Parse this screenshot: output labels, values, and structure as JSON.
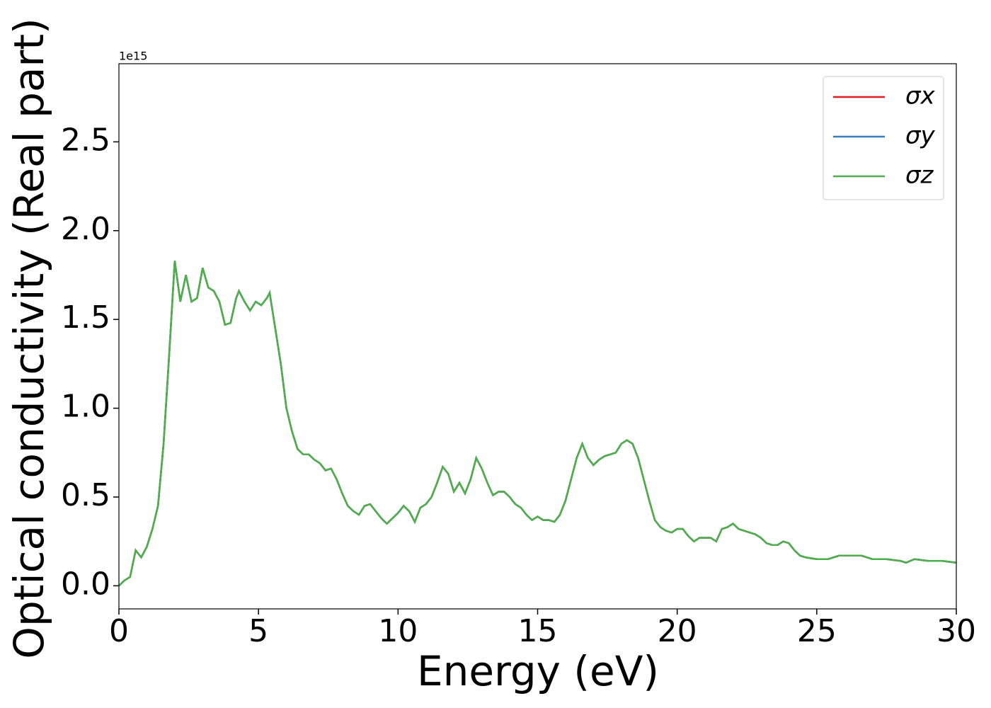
{
  "chart_data": {
    "type": "line",
    "xlabel": "Energy (eV)",
    "ylabel": "Optical conductivity (Real part)",
    "y_offset_label": "1e15",
    "xlim": [
      0,
      30
    ],
    "xticks": [
      0,
      5,
      10,
      15,
      20,
      25,
      30
    ],
    "ylim": [
      -0.13,
      2.94
    ],
    "yticks": [
      {
        "value": 0,
        "label": "0.0"
      },
      {
        "value": 0.5,
        "label": "0.5"
      },
      {
        "value": 1,
        "label": "1.0"
      },
      {
        "value": 1.5,
        "label": "1.5"
      },
      {
        "value": 2,
        "label": "2.0"
      },
      {
        "value": 2.5,
        "label": "2.5"
      }
    ],
    "legend": "upper right",
    "x": [
      0,
      0.2,
      0.4,
      0.6,
      0.8,
      1.0,
      1.2,
      1.4,
      1.6,
      1.8,
      2.0,
      2.2,
      2.4,
      2.6,
      2.8,
      3.0,
      3.2,
      3.4,
      3.6,
      3.8,
      4.0,
      4.2,
      4.3,
      4.5,
      4.7,
      4.9,
      5.1,
      5.3,
      5.4,
      5.6,
      5.8,
      6.0,
      6.2,
      6.4,
      6.6,
      6.8,
      7.0,
      7.2,
      7.4,
      7.6,
      7.8,
      8.0,
      8.2,
      8.4,
      8.6,
      8.8,
      9.0,
      9.2,
      9.4,
      9.6,
      9.8,
      10.0,
      10.2,
      10.4,
      10.6,
      10.8,
      11.0,
      11.2,
      11.4,
      11.6,
      11.8,
      12.0,
      12.2,
      12.4,
      12.6,
      12.8,
      13.0,
      13.2,
      13.4,
      13.6,
      13.8,
      14.0,
      14.2,
      14.4,
      14.6,
      14.8,
      15.0,
      15.2,
      15.4,
      15.6,
      15.8,
      16.0,
      16.2,
      16.4,
      16.6,
      16.8,
      17.0,
      17.2,
      17.4,
      17.6,
      17.8,
      18.0,
      18.2,
      18.4,
      18.6,
      18.8,
      19.0,
      19.2,
      19.4,
      19.6,
      19.8,
      20.0,
      20.2,
      20.4,
      20.6,
      20.8,
      21.0,
      21.2,
      21.4,
      21.6,
      21.8,
      22.0,
      22.2,
      22.4,
      22.6,
      22.8,
      23.0,
      23.2,
      23.4,
      23.6,
      23.8,
      24.0,
      24.2,
      24.4,
      24.6,
      25.0,
      25.4,
      25.8,
      26.2,
      26.6,
      27.0,
      27.5,
      28.0,
      28.2,
      28.5,
      29.0,
      29.5,
      30.0
    ],
    "series": [
      {
        "name": "σx",
        "color": "#e41a1c",
        "values": [
          0,
          0.03,
          0.05,
          0.2,
          0.16,
          0.22,
          0.32,
          0.45,
          0.8,
          1.3,
          1.83,
          1.6,
          1.75,
          1.6,
          1.62,
          1.79,
          1.68,
          1.66,
          1.6,
          1.47,
          1.48,
          1.62,
          1.66,
          1.6,
          1.55,
          1.6,
          1.58,
          1.62,
          1.65,
          1.45,
          1.25,
          1.0,
          0.87,
          0.77,
          0.74,
          0.74,
          0.71,
          0.69,
          0.65,
          0.66,
          0.6,
          0.52,
          0.45,
          0.42,
          0.4,
          0.45,
          0.46,
          0.42,
          0.38,
          0.35,
          0.38,
          0.41,
          0.45,
          0.42,
          0.36,
          0.44,
          0.46,
          0.5,
          0.58,
          0.67,
          0.63,
          0.53,
          0.58,
          0.52,
          0.6,
          0.72,
          0.66,
          0.58,
          0.51,
          0.53,
          0.53,
          0.5,
          0.46,
          0.44,
          0.4,
          0.37,
          0.39,
          0.37,
          0.37,
          0.36,
          0.4,
          0.48,
          0.6,
          0.72,
          0.8,
          0.72,
          0.68,
          0.71,
          0.73,
          0.74,
          0.75,
          0.8,
          0.82,
          0.8,
          0.72,
          0.6,
          0.48,
          0.37,
          0.33,
          0.31,
          0.3,
          0.32,
          0.32,
          0.28,
          0.25,
          0.27,
          0.27,
          0.27,
          0.25,
          0.32,
          0.33,
          0.35,
          0.32,
          0.31,
          0.3,
          0.29,
          0.27,
          0.24,
          0.23,
          0.23,
          0.25,
          0.24,
          0.2,
          0.17,
          0.16,
          0.15,
          0.15,
          0.17,
          0.17,
          0.17,
          0.15,
          0.15,
          0.14,
          0.13,
          0.15,
          0.14,
          0.14,
          0.13
        ]
      },
      {
        "name": "σy",
        "color": "#377eb8",
        "values": [
          0,
          0.03,
          0.05,
          0.2,
          0.16,
          0.22,
          0.32,
          0.45,
          0.8,
          1.3,
          1.83,
          1.6,
          1.75,
          1.6,
          1.62,
          1.79,
          1.68,
          1.66,
          1.6,
          1.47,
          1.48,
          1.62,
          1.66,
          1.6,
          1.55,
          1.6,
          1.58,
          1.62,
          1.65,
          1.45,
          1.25,
          1.0,
          0.87,
          0.77,
          0.74,
          0.74,
          0.71,
          0.69,
          0.65,
          0.66,
          0.6,
          0.52,
          0.45,
          0.42,
          0.4,
          0.45,
          0.46,
          0.42,
          0.38,
          0.35,
          0.38,
          0.41,
          0.45,
          0.42,
          0.36,
          0.44,
          0.46,
          0.5,
          0.58,
          0.67,
          0.63,
          0.53,
          0.58,
          0.52,
          0.6,
          0.72,
          0.66,
          0.58,
          0.51,
          0.53,
          0.53,
          0.5,
          0.46,
          0.44,
          0.4,
          0.37,
          0.39,
          0.37,
          0.37,
          0.36,
          0.4,
          0.48,
          0.6,
          0.72,
          0.8,
          0.72,
          0.68,
          0.71,
          0.73,
          0.74,
          0.75,
          0.8,
          0.82,
          0.8,
          0.72,
          0.6,
          0.48,
          0.37,
          0.33,
          0.31,
          0.3,
          0.32,
          0.32,
          0.28,
          0.25,
          0.27,
          0.27,
          0.27,
          0.25,
          0.32,
          0.33,
          0.35,
          0.32,
          0.31,
          0.3,
          0.29,
          0.27,
          0.24,
          0.23,
          0.23,
          0.25,
          0.24,
          0.2,
          0.17,
          0.16,
          0.15,
          0.15,
          0.17,
          0.17,
          0.17,
          0.15,
          0.15,
          0.14,
          0.13,
          0.15,
          0.14,
          0.14,
          0.13
        ]
      },
      {
        "name": "σz",
        "color": "#4daf4a",
        "values": [
          0,
          0.03,
          0.05,
          0.2,
          0.16,
          0.22,
          0.32,
          0.45,
          0.8,
          1.3,
          1.83,
          1.6,
          1.75,
          1.6,
          1.62,
          1.79,
          1.68,
          1.66,
          1.6,
          1.47,
          1.48,
          1.62,
          1.66,
          1.6,
          1.55,
          1.6,
          1.58,
          1.62,
          1.65,
          1.45,
          1.25,
          1.0,
          0.87,
          0.77,
          0.74,
          0.74,
          0.71,
          0.69,
          0.65,
          0.66,
          0.6,
          0.52,
          0.45,
          0.42,
          0.4,
          0.45,
          0.46,
          0.42,
          0.38,
          0.35,
          0.38,
          0.41,
          0.45,
          0.42,
          0.36,
          0.44,
          0.46,
          0.5,
          0.58,
          0.67,
          0.63,
          0.53,
          0.58,
          0.52,
          0.6,
          0.72,
          0.66,
          0.58,
          0.51,
          0.53,
          0.53,
          0.5,
          0.46,
          0.44,
          0.4,
          0.37,
          0.39,
          0.37,
          0.37,
          0.36,
          0.4,
          0.48,
          0.6,
          0.72,
          0.8,
          0.72,
          0.68,
          0.71,
          0.73,
          0.74,
          0.75,
          0.8,
          0.82,
          0.8,
          0.72,
          0.6,
          0.48,
          0.37,
          0.33,
          0.31,
          0.3,
          0.32,
          0.32,
          0.28,
          0.25,
          0.27,
          0.27,
          0.27,
          0.25,
          0.32,
          0.33,
          0.35,
          0.32,
          0.31,
          0.3,
          0.29,
          0.27,
          0.24,
          0.23,
          0.23,
          0.25,
          0.24,
          0.2,
          0.17,
          0.16,
          0.15,
          0.15,
          0.17,
          0.17,
          0.17,
          0.15,
          0.15,
          0.14,
          0.13,
          0.15,
          0.14,
          0.14,
          0.13
        ]
      }
    ]
  }
}
